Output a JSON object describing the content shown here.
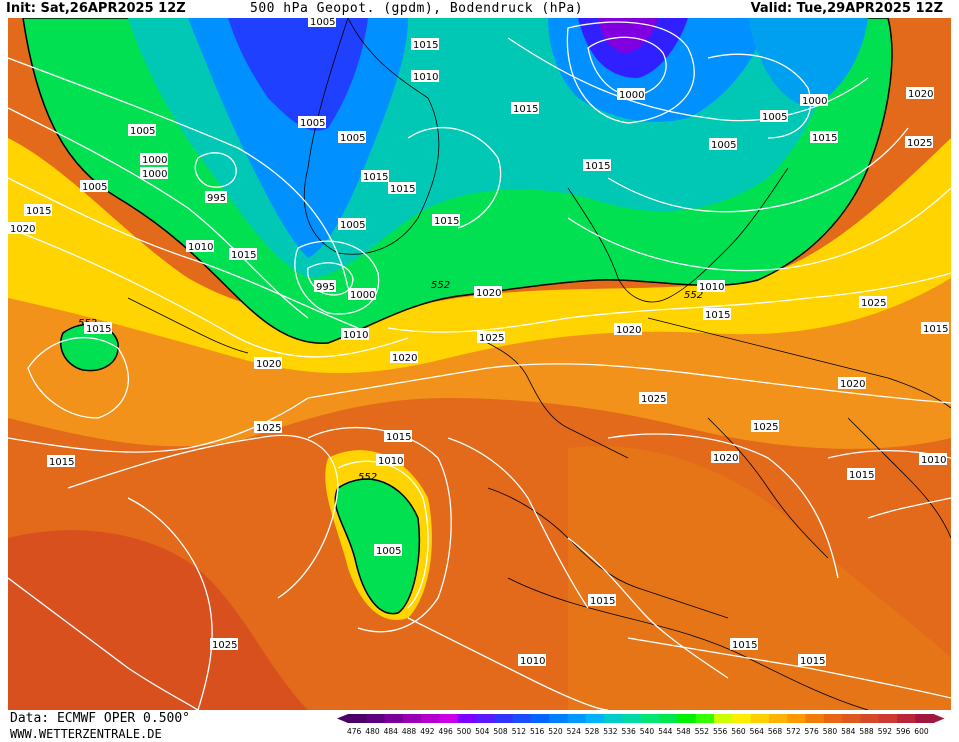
{
  "header": {
    "init": "Init: Sat,26APR2025 12Z",
    "title": "500 hPa Geopot. (gpdm), Bodendruck (hPa)",
    "valid": "Valid: Tue,29APR2025 12Z"
  },
  "footer": {
    "data_source": "Data: ECMWF OPER 0.500°",
    "website": "WWW.WETTERZENTRALE.DE"
  },
  "legend": {
    "levels": [
      "476",
      "480",
      "484",
      "488",
      "492",
      "496",
      "500",
      "504",
      "508",
      "512",
      "516",
      "520",
      "524",
      "528",
      "532",
      "536",
      "540",
      "544",
      "548",
      "552",
      "556",
      "560",
      "564",
      "568",
      "572",
      "576",
      "580",
      "584",
      "588",
      "592",
      "596",
      "600"
    ],
    "colors": [
      "#4a0066",
      "#5e0080",
      "#7a0099",
      "#9900b3",
      "#b300cc",
      "#cc00e6",
      "#8000ff",
      "#5a1aff",
      "#3333ff",
      "#1a4dff",
      "#0066ff",
      "#0080ff",
      "#0099ff",
      "#00b3ff",
      "#00cccc",
      "#00d9a6",
      "#00e673",
      "#00e64d",
      "#00f000",
      "#33ff00",
      "#ccff00",
      "#ffee00",
      "#ffd000",
      "#ffb300",
      "#ff9900",
      "#f07d0a",
      "#e66614",
      "#dd5a1e",
      "#d44a28",
      "#cc3a32",
      "#b82838",
      "#a01840"
    ]
  },
  "map": {
    "height_labels": [
      "552",
      "552",
      "552",
      "552",
      "552"
    ],
    "isobar_labels": [
      "1005",
      "1015",
      "1010",
      "1015",
      "1005",
      "1005",
      "1000",
      "1000",
      "995",
      "1005",
      "1015",
      "1020",
      "1010",
      "1015",
      "1015",
      "1015",
      "1005",
      "995",
      "1000",
      "1005",
      "1010",
      "1015",
      "1015",
      "1000",
      "1005",
      "1015",
      "1000",
      "1005",
      "1015",
      "1010",
      "1015",
      "1020",
      "1025",
      "1025",
      "1015",
      "1020",
      "1020",
      "1025",
      "1020",
      "1025",
      "1015",
      "1015",
      "1015",
      "1010",
      "1020",
      "1005",
      "1025",
      "1025",
      "1020",
      "1015",
      "1010",
      "1015",
      "1010",
      "1020",
      "1025",
      "1015"
    ],
    "colors": {
      "land_border": "#000000",
      "isobar": "#ffffff"
    }
  }
}
